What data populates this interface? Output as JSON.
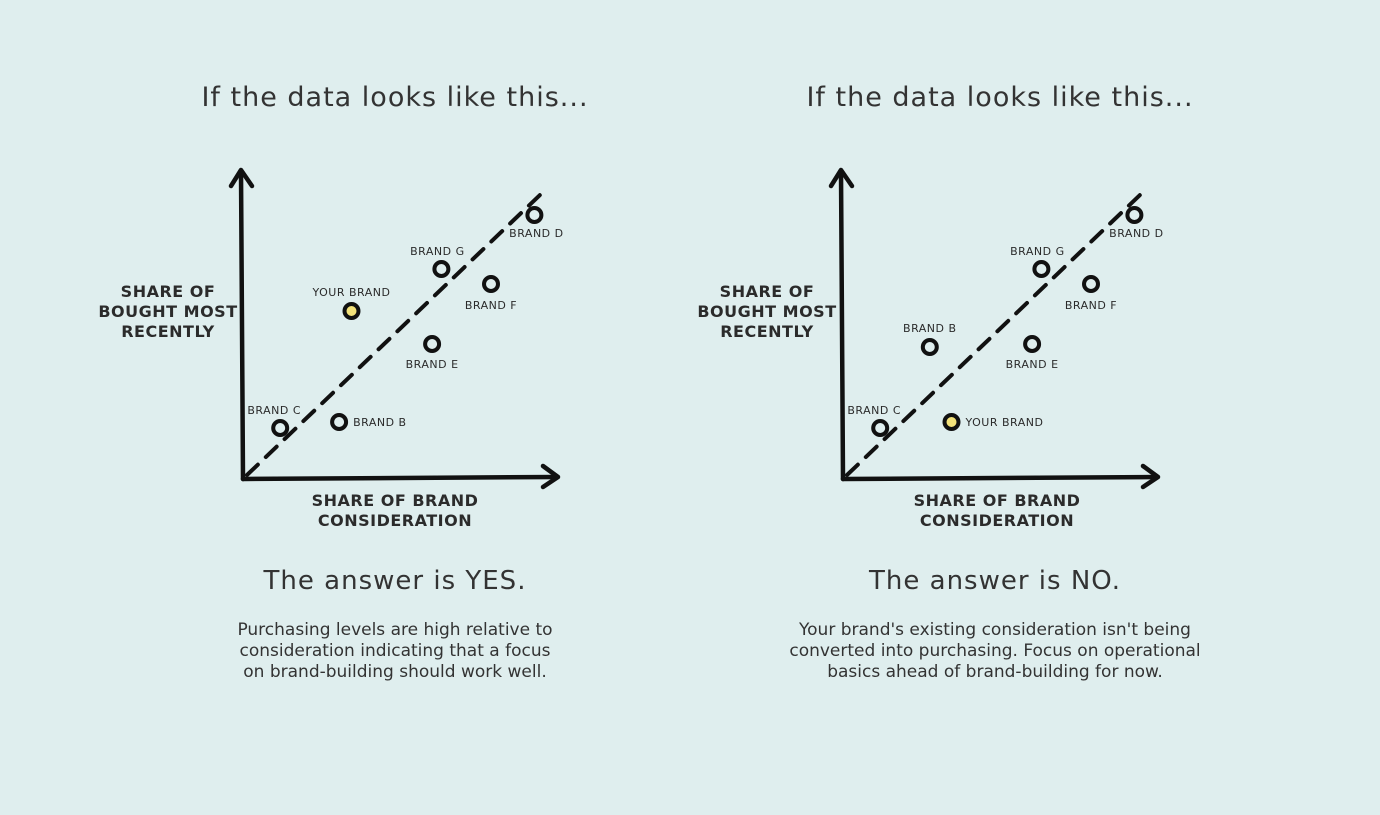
{
  "colors": {
    "background": "#dfeeee",
    "axis": "#111111",
    "marker_fill_default": "#dfeeee",
    "marker_fill_highlight": "#f3e27a"
  },
  "chart_data": [
    {
      "type": "scatter",
      "title": "If the data looks like this...",
      "xlabel": "SHARE OF BRAND CONSIDERATION",
      "ylabel": "SHARE OF BOUGHT MOST RECENTLY",
      "trendline": "dashed diagonal",
      "grid": false,
      "legend": "none",
      "points": [
        {
          "label": "BRAND C",
          "x": 12,
          "y": 17,
          "highlight": false
        },
        {
          "label": "BRAND B",
          "x": 31,
          "y": 19,
          "highlight": false
        },
        {
          "label": "YOUR BRAND",
          "x": 35,
          "y": 56,
          "highlight": true
        },
        {
          "label": "BRAND E",
          "x": 61,
          "y": 45,
          "highlight": false
        },
        {
          "label": "BRAND G",
          "x": 64,
          "y": 70,
          "highlight": false
        },
        {
          "label": "BRAND F",
          "x": 80,
          "y": 65,
          "highlight": false
        },
        {
          "label": "BRAND D",
          "x": 94,
          "y": 88,
          "highlight": false
        }
      ],
      "answer": "The answer is YES.",
      "explanation": [
        "Purchasing levels are high relative to",
        "consideration indicating that a focus",
        "on brand-building should work well."
      ]
    },
    {
      "type": "scatter",
      "title": "If the data looks like this...",
      "xlabel": "SHARE OF BRAND CONSIDERATION",
      "ylabel": "SHARE OF BOUGHT MOST RECENTLY",
      "trendline": "dashed diagonal",
      "grid": false,
      "legend": "none",
      "points": [
        {
          "label": "BRAND C",
          "x": 12,
          "y": 17,
          "highlight": false
        },
        {
          "label": "YOUR BRAND",
          "x": 35,
          "y": 19,
          "highlight": true
        },
        {
          "label": "BRAND B",
          "x": 28,
          "y": 44,
          "highlight": false
        },
        {
          "label": "BRAND E",
          "x": 61,
          "y": 45,
          "highlight": false
        },
        {
          "label": "BRAND G",
          "x": 64,
          "y": 70,
          "highlight": false
        },
        {
          "label": "BRAND F",
          "x": 80,
          "y": 65,
          "highlight": false
        },
        {
          "label": "BRAND D",
          "x": 94,
          "y": 88,
          "highlight": false
        }
      ],
      "answer": "The answer is NO.",
      "explanation": [
        "Your brand's existing consideration isn't being",
        "converted into purchasing. Focus on operational",
        "basics ahead of brand-building for now."
      ]
    }
  ],
  "labels": {
    "ylabel_lines": [
      "SHARE OF",
      "BOUGHT MOST",
      "RECENTLY"
    ],
    "xlabel_lines": [
      "SHARE OF BRAND",
      "CONSIDERATION"
    ]
  }
}
